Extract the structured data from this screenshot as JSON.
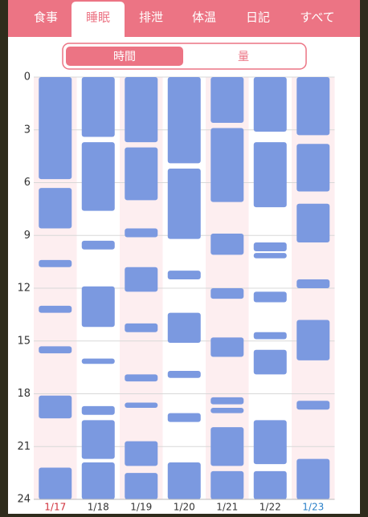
{
  "tabs": [
    "食事",
    "睡眠",
    "排泄",
    "体温",
    "日記",
    "すべて"
  ],
  "active_tab": 1,
  "toggle": {
    "options": [
      "時間",
      "量"
    ],
    "active": 0
  },
  "chart_data": {
    "type": "range-bar",
    "categories": [
      "1/17",
      "1/18",
      "1/19",
      "1/20",
      "1/21",
      "1/22",
      "1/23"
    ],
    "category_colors": [
      "#d0303a",
      "#333333",
      "#333333",
      "#333333",
      "#333333",
      "#333333",
      "#2a80c8"
    ],
    "color": "#7b99e0",
    "ylim": [
      0,
      24
    ],
    "yticks": [
      0,
      3,
      6,
      9,
      12,
      15,
      18,
      21,
      24
    ],
    "grid": true,
    "intervals": [
      [
        [
          0,
          5.8
        ],
        [
          6.3,
          8.6
        ],
        [
          10.4,
          10.8
        ],
        [
          13.0,
          13.4
        ],
        [
          15.3,
          15.7
        ],
        [
          18.1,
          19.4
        ],
        [
          22.2,
          24
        ]
      ],
      [
        [
          0,
          3.4
        ],
        [
          3.7,
          7.6
        ],
        [
          9.3,
          9.8
        ],
        [
          11.9,
          14.2
        ],
        [
          16.0,
          16.3
        ],
        [
          18.7,
          19.2
        ],
        [
          19.5,
          21.7
        ],
        [
          21.9,
          24
        ]
      ],
      [
        [
          0,
          3.7
        ],
        [
          4.0,
          7.0
        ],
        [
          8.6,
          9.1
        ],
        [
          10.8,
          12.2
        ],
        [
          14.0,
          14.5
        ],
        [
          16.9,
          17.3
        ],
        [
          18.5,
          18.8
        ],
        [
          20.7,
          22.1
        ],
        [
          22.5,
          24
        ]
      ],
      [
        [
          0,
          4.9
        ],
        [
          5.2,
          9.2
        ],
        [
          11.0,
          11.5
        ],
        [
          13.4,
          15.1
        ],
        [
          16.7,
          17.1
        ],
        [
          19.1,
          19.6
        ],
        [
          21.9,
          24
        ]
      ],
      [
        [
          0,
          2.6
        ],
        [
          2.9,
          7.1
        ],
        [
          8.9,
          10.1
        ],
        [
          12.0,
          12.6
        ],
        [
          14.8,
          15.9
        ],
        [
          18.2,
          18.6
        ],
        [
          18.8,
          19.1
        ],
        [
          19.9,
          22.1
        ],
        [
          22.4,
          24
        ]
      ],
      [
        [
          0,
          3.1
        ],
        [
          3.7,
          7.4
        ],
        [
          9.4,
          9.9
        ],
        [
          10.0,
          10.3
        ],
        [
          12.2,
          12.8
        ],
        [
          14.5,
          14.9
        ],
        [
          15.5,
          16.9
        ],
        [
          19.5,
          22.0
        ],
        [
          22.4,
          24
        ]
      ],
      [
        [
          0,
          3.3
        ],
        [
          3.8,
          6.5
        ],
        [
          7.2,
          9.4
        ],
        [
          11.5,
          12.0
        ],
        [
          13.8,
          16.1
        ],
        [
          18.4,
          18.9
        ],
        [
          21.7,
          24
        ]
      ]
    ]
  }
}
